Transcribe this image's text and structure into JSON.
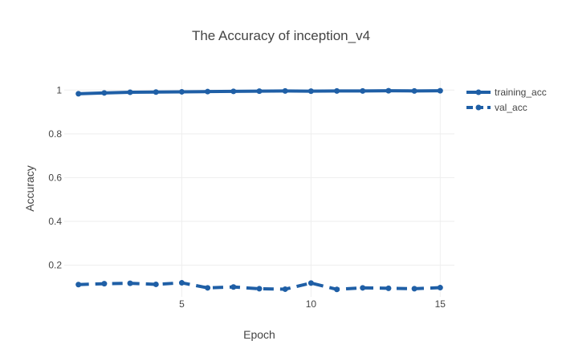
{
  "chart_data": {
    "type": "line",
    "title": "The Accuracy of inception_v4",
    "xlabel": "Epoch",
    "ylabel": "Accuracy",
    "xlim": [
      0.45,
      15.55
    ],
    "ylim": [
      0.055,
      1.045
    ],
    "xticks": [
      5,
      10,
      15
    ],
    "yticks": [
      0.2,
      0.4,
      0.6,
      0.8,
      1
    ],
    "x": [
      1,
      2,
      3,
      4,
      5,
      6,
      7,
      8,
      9,
      10,
      11,
      12,
      13,
      14,
      15
    ],
    "series": [
      {
        "name": "training_acc",
        "color": "#1f5fa6",
        "dash": "solid",
        "values": [
          0.983,
          0.987,
          0.99,
          0.991,
          0.992,
          0.993,
          0.994,
          0.995,
          0.996,
          0.995,
          0.996,
          0.996,
          0.997,
          0.996,
          0.997
        ]
      },
      {
        "name": "val_acc",
        "color": "#1f5fa6",
        "dash": "dash",
        "values": [
          0.111,
          0.115,
          0.117,
          0.112,
          0.119,
          0.096,
          0.1,
          0.092,
          0.09,
          0.118,
          0.089,
          0.096,
          0.094,
          0.092,
          0.097
        ]
      }
    ],
    "grid": true,
    "legend": "top-right"
  }
}
